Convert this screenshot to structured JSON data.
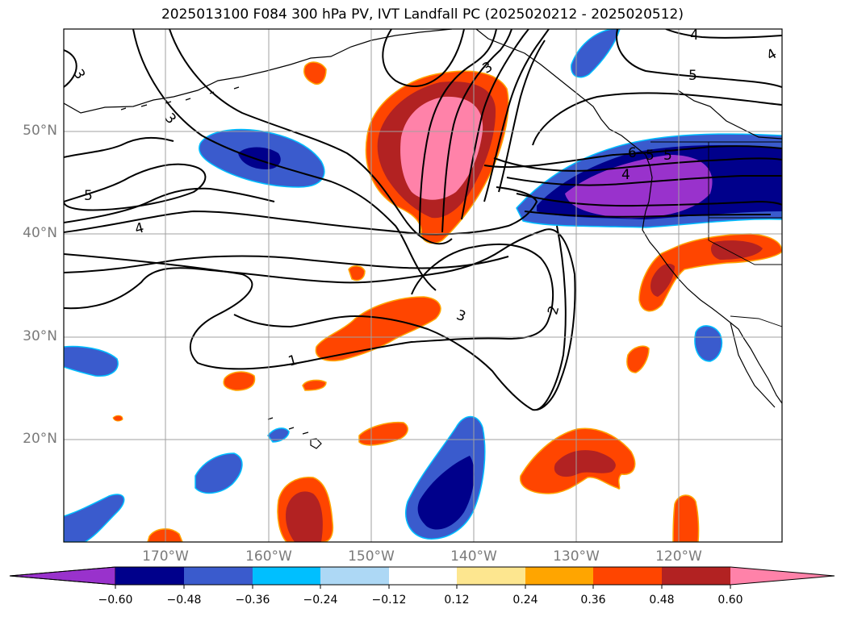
{
  "title": "2025013100 F084 300 hPa PV, IVT Landfall PC (2025020212 - 2025020512)",
  "lat_labels": [
    "50°N",
    "40°N",
    "30°N",
    "20°N"
  ],
  "lon_labels": [
    "170°W",
    "160°W",
    "150°W",
    "140°W",
    "130°W",
    "120°W"
  ],
  "contour_labels": [
    "3",
    "3",
    "3",
    "5",
    "4",
    "3",
    "1",
    "2",
    "4",
    "5",
    "4",
    "5",
    "4",
    "6",
    "5"
  ],
  "colorbar": {
    "ticks": [
      "−0.60",
      "−0.48",
      "−0.36",
      "−0.24",
      "−0.12",
      "0.12",
      "0.24",
      "0.36",
      "0.48",
      "0.60"
    ],
    "colors": [
      "#9932cc",
      "#00008b",
      "#3a5bcd",
      "#00bfff",
      "#add8f5",
      "#ffffff",
      "#fde68f",
      "#ffa500",
      "#ff4500",
      "#b22222",
      "#ff82a9"
    ]
  },
  "fill_colors": {
    "neg3": "#9932cc",
    "neg2": "#00008b",
    "neg1": "#3a5bcd",
    "neg_edge": "#00bfff",
    "pos1": "#ff4500",
    "pos2": "#b22222",
    "pos3": "#ff82a9",
    "pos_edge": "#ffa500"
  }
}
